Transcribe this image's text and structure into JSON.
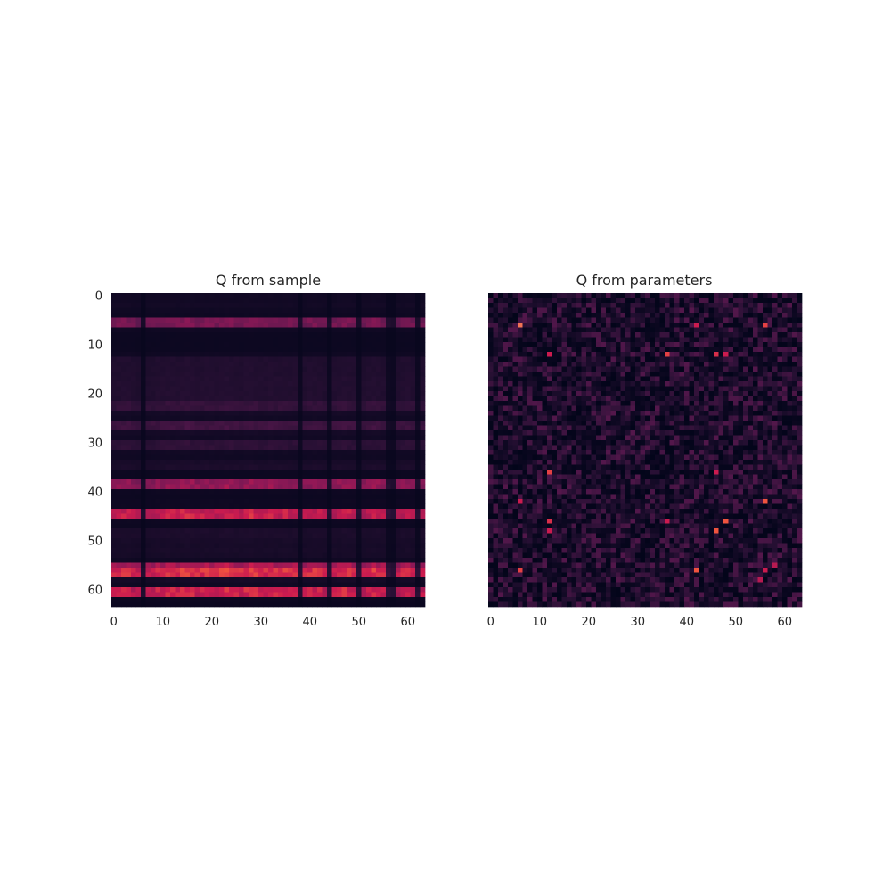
{
  "chart_data": [
    {
      "type": "heatmap",
      "title": "Q from sample",
      "rows": 64,
      "cols": 64,
      "xticks": [
        0,
        10,
        20,
        30,
        40,
        50,
        60
      ],
      "yticks": [
        0,
        10,
        20,
        30,
        40,
        50,
        60
      ],
      "show_yticks": true,
      "colormap": "rocket",
      "value_range": [
        0,
        1
      ],
      "grid": false,
      "pattern": "rank-one (row weight × column weight)",
      "row_weights": [
        0.06,
        0.06,
        0.07,
        0.05,
        0.04,
        0.55,
        0.55,
        0.05,
        0.03,
        0.03,
        0.03,
        0.03,
        0.05,
        0.15,
        0.15,
        0.15,
        0.15,
        0.16,
        0.16,
        0.16,
        0.16,
        0.16,
        0.25,
        0.25,
        0.08,
        0.06,
        0.3,
        0.3,
        0.08,
        0.06,
        0.22,
        0.22,
        0.06,
        0.05,
        0.1,
        0.12,
        0.03,
        0.03,
        0.65,
        0.65,
        0.04,
        0.03,
        0.04,
        0.04,
        0.85,
        0.85,
        0.04,
        0.03,
        0.12,
        0.12,
        0.1,
        0.09,
        0.1,
        0.09,
        0.05,
        0.75,
        0.95,
        0.95,
        0.08,
        0.05,
        0.88,
        0.88,
        0.03,
        0.02
      ],
      "col_weights": [
        0.85,
        0.9,
        0.92,
        0.9,
        0.85,
        0.8,
        0.15,
        0.82,
        0.85,
        0.9,
        0.92,
        0.95,
        0.92,
        0.9,
        0.95,
        1.0,
        0.95,
        0.9,
        0.92,
        0.95,
        0.92,
        0.9,
        0.95,
        1.0,
        0.95,
        0.92,
        0.9,
        0.95,
        1.0,
        0.95,
        0.92,
        0.9,
        0.95,
        0.92,
        0.9,
        0.95,
        0.92,
        0.9,
        0.2,
        0.85,
        0.9,
        0.92,
        0.9,
        0.85,
        0.2,
        0.88,
        0.92,
        0.95,
        0.92,
        0.9,
        0.2,
        0.85,
        0.9,
        0.95,
        0.92,
        0.88,
        0.25,
        0.2,
        0.82,
        0.88,
        0.92,
        0.88,
        0.2,
        0.85
      ]
    },
    {
      "type": "heatmap",
      "title": "Q from parameters",
      "rows": 64,
      "cols": 64,
      "xticks": [
        0,
        10,
        20,
        30,
        40,
        50,
        60
      ],
      "yticks": [],
      "show_yticks": false,
      "colormap": "rocket",
      "value_range": [
        0,
        1
      ],
      "grid": false,
      "pattern": "symmetric sparse noise",
      "base_level": 0.15,
      "hotspots": [
        {
          "row": 6,
          "col": 6,
          "value": 0.8
        },
        {
          "row": 6,
          "col": 42,
          "value": 0.7
        },
        {
          "row": 12,
          "col": 12,
          "value": 0.6
        },
        {
          "row": 12,
          "col": 36,
          "value": 0.7
        },
        {
          "row": 12,
          "col": 46,
          "value": 1.0
        },
        {
          "row": 12,
          "col": 48,
          "value": 0.65
        },
        {
          "row": 36,
          "col": 46,
          "value": 0.6
        },
        {
          "row": 42,
          "col": 6,
          "value": 0.6
        },
        {
          "row": 46,
          "col": 12,
          "value": 0.65
        },
        {
          "row": 46,
          "col": 48,
          "value": 0.85
        },
        {
          "row": 48,
          "col": 12,
          "value": 0.6
        },
        {
          "row": 48,
          "col": 46,
          "value": 0.75
        },
        {
          "row": 56,
          "col": 6,
          "value": 0.7
        },
        {
          "row": 56,
          "col": 42,
          "value": 0.75
        },
        {
          "row": 56,
          "col": 56,
          "value": 0.6
        },
        {
          "row": 55,
          "col": 58,
          "value": 0.55
        }
      ]
    }
  ]
}
